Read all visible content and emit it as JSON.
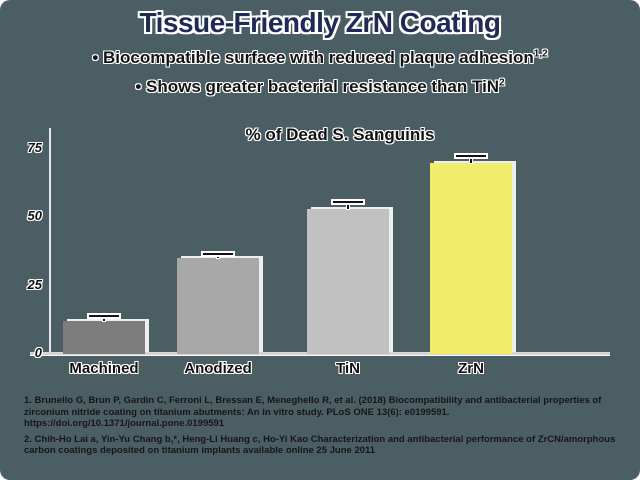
{
  "slide": {
    "title": "Tissue-Friendly ZrN Coating",
    "bullet_char": "•",
    "bullets": [
      {
        "text": "Biocompatible surface with reduced plaque adhesion",
        "sup": "1,2"
      },
      {
        "text": "Shows greater bacterial resistance than TiN",
        "sup": "2"
      }
    ],
    "footnotes": [
      "1. Brunello G, Brun P, Gardin C, Ferroni L, Bressan E, Meneghello R, et al. (2018) Biocompatibility and antibacterial properties of zirconium nitride coating on titanium abutments: An in vitro study. PLoS ONE 13(6): e0199591. https://doi.org/10.1371/journal.pone.0199591",
      "2. Chih-Ho Lai a, Yin-Yu Chang b,*, Heng-Li Huang c, Ho-Yi Kao Characterization and antibacterial performance of ZrCN/amorphous carbon coatings deposited on titanium implants available online 25 June 2011"
    ]
  },
  "colors": {
    "background": "#4b5e64",
    "title_text": "#1f2a55",
    "axis": "#e6e6e6",
    "bar_machined": "#7d7d7d",
    "bar_anodized": "#a8a8a8",
    "bar_tin": "#c1c1c1",
    "bar_zrn": "#f2ec6d"
  },
  "chart_data": {
    "type": "bar",
    "title": "% of Dead S. Sanguinis",
    "categories": [
      "Machined",
      "Anodized",
      "TiN",
      "ZrN"
    ],
    "values": [
      12,
      35,
      53,
      70
    ],
    "errors": [
      2,
      1.5,
      2.5,
      2.5
    ],
    "bar_colors": [
      "#7d7d7d",
      "#a8a8a8",
      "#c1c1c1",
      "#f2ec6d"
    ],
    "xlabel": "",
    "ylabel": "",
    "yticks": [
      0,
      25,
      50,
      75
    ],
    "ylim": [
      0,
      82
    ],
    "grid": false,
    "legend": null
  }
}
